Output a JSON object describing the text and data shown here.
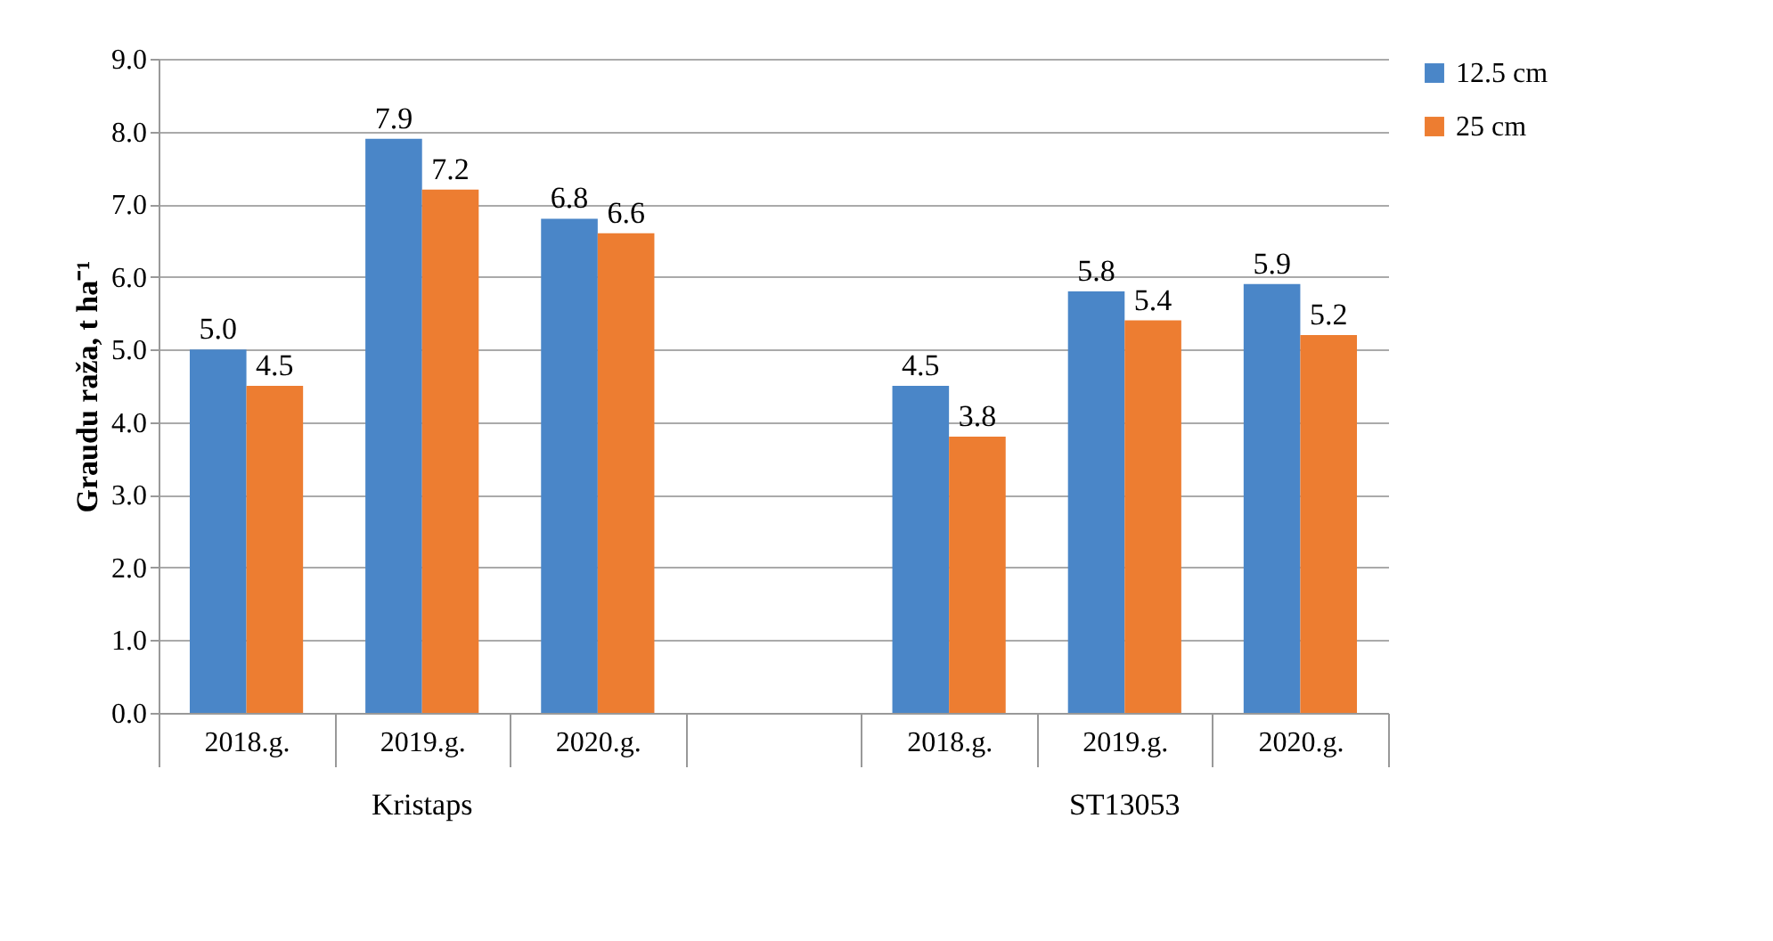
{
  "chart_data": {
    "type": "bar",
    "ylabel": "Graudu raža, t ha⁻¹",
    "categories": [
      "2018.g.",
      "2019.g.",
      "2020.g.",
      null,
      "2018.g.",
      "2019.g.",
      "2020.g."
    ],
    "series": [
      {
        "name": "12.5 cm",
        "color": "#4a86c8",
        "values": [
          5.0,
          7.9,
          6.8,
          null,
          4.5,
          5.8,
          5.9
        ],
        "value_labels": [
          "5.0",
          "7.9",
          "6.8",
          null,
          "4.5",
          "5.8",
          "5.9"
        ]
      },
      {
        "name": "25 cm",
        "color": "#ed7d31",
        "values": [
          4.5,
          7.2,
          6.6,
          null,
          3.8,
          5.4,
          5.2
        ],
        "value_labels": [
          "4.5",
          "7.2",
          "6.6",
          null,
          "3.8",
          "5.4",
          "5.2"
        ]
      }
    ],
    "annotations": [
      "Kristaps",
      "ST13053"
    ],
    "ylim": [
      0,
      9
    ],
    "yticks": [
      {
        "value": 0,
        "label": "0.0"
      },
      {
        "value": 1,
        "label": "1.0"
      },
      {
        "value": 2,
        "label": "2.0"
      },
      {
        "value": 3,
        "label": "3.0"
      },
      {
        "value": 4,
        "label": "4.0"
      },
      {
        "value": 5,
        "label": "5.0"
      },
      {
        "value": 6,
        "label": "6.0"
      },
      {
        "value": 7,
        "label": "7.0"
      },
      {
        "value": 8,
        "label": "8.0"
      },
      {
        "value": 9,
        "label": "9.0"
      }
    ],
    "grid": "y",
    "legend": "right"
  }
}
